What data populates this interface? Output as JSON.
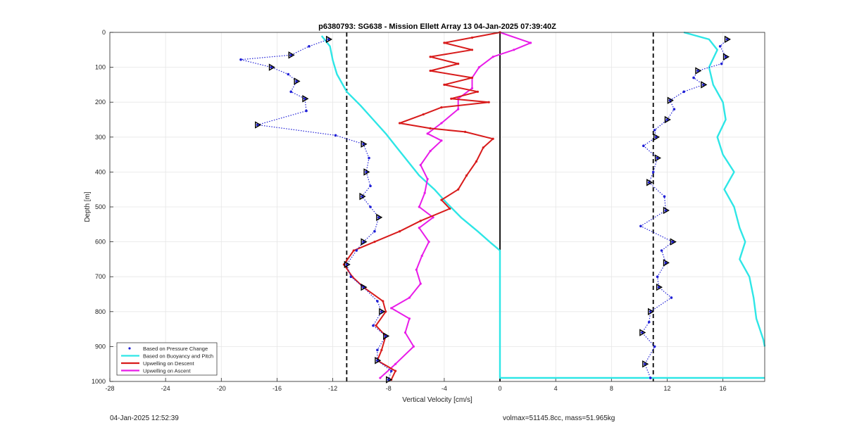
{
  "chart_data": {
    "type": "line",
    "title": "p6380793: SG638 - Mission Ellett Array 13 04-Jan-2025 07:39:40Z",
    "xlabel": "Vertical Velocity [cm/s]",
    "ylabel": "Depth [m]",
    "xlim": [
      -28,
      19
    ],
    "ylim": [
      0,
      1000
    ],
    "y_reversed": true,
    "grid": true,
    "xticks": [
      -28,
      -24,
      -20,
      -16,
      -12,
      -8,
      -4,
      0,
      4,
      8,
      12,
      16
    ],
    "yticks": [
      0,
      100,
      200,
      300,
      400,
      500,
      600,
      700,
      800,
      900,
      1000
    ],
    "reference_lines": [
      {
        "x": -11,
        "style": "dashed",
        "color": "#000000"
      },
      {
        "x": 0,
        "style": "solid",
        "color": "#000000"
      },
      {
        "x": 11,
        "style": "dashed",
        "color": "#000000"
      }
    ],
    "legend_position": "bottom-left",
    "series": [
      {
        "name": "Based on Pressure Change",
        "style": "dots",
        "color": "#1f1fd6",
        "descent": [
          [
            -12.3,
            20
          ],
          [
            -13.7,
            40
          ],
          [
            -15,
            65
          ],
          [
            -18.6,
            78
          ],
          [
            -16.4,
            100
          ],
          [
            -15.2,
            120
          ],
          [
            -14.6,
            140
          ],
          [
            -15,
            170
          ],
          [
            -14,
            190
          ],
          [
            -13.9,
            225
          ],
          [
            -17.4,
            265
          ],
          [
            -11.8,
            295
          ],
          [
            -9.8,
            320
          ],
          [
            -9.4,
            360
          ],
          [
            -9.6,
            400
          ],
          [
            -9.3,
            440
          ],
          [
            -9.9,
            470
          ],
          [
            -9.3,
            500
          ],
          [
            -8.7,
            530
          ],
          [
            -9,
            570
          ],
          [
            -9.8,
            600
          ],
          [
            -10.3,
            625
          ],
          [
            -11,
            665
          ],
          [
            -10.7,
            700
          ],
          [
            -9.8,
            730
          ],
          [
            -8.8,
            770
          ],
          [
            -8.5,
            800
          ],
          [
            -9.1,
            840
          ],
          [
            -8.2,
            870
          ],
          [
            -8.8,
            910
          ],
          [
            -8.8,
            940
          ],
          [
            -7.8,
            970
          ],
          [
            -8,
            995
          ]
        ],
        "ascent": [
          [
            16.3,
            20
          ],
          [
            15.8,
            40
          ],
          [
            16.2,
            70
          ],
          [
            15.9,
            90
          ],
          [
            14.2,
            110
          ],
          [
            13.9,
            130
          ],
          [
            14.6,
            150
          ],
          [
            13.2,
            170
          ],
          [
            12.2,
            195
          ],
          [
            12.5,
            220
          ],
          [
            12,
            250
          ],
          [
            11.1,
            280
          ],
          [
            11.2,
            300
          ],
          [
            10.3,
            325
          ],
          [
            11.3,
            360
          ],
          [
            11,
            400
          ],
          [
            10.7,
            430
          ],
          [
            11.8,
            470
          ],
          [
            11.9,
            510
          ],
          [
            10.1,
            555
          ],
          [
            12.4,
            600
          ],
          [
            11.6,
            625
          ],
          [
            11.9,
            660
          ],
          [
            11.3,
            700
          ],
          [
            11.4,
            730
          ],
          [
            12.3,
            760
          ],
          [
            10.8,
            800
          ],
          [
            10.7,
            830
          ],
          [
            10.2,
            860
          ],
          [
            11.1,
            900
          ],
          [
            10.4,
            950
          ],
          [
            10.8,
            990
          ]
        ]
      },
      {
        "name": "Based on Buoyancy and Pitch",
        "style": "line",
        "color": "#2ee6e6",
        "descent": [
          [
            -12.8,
            10
          ],
          [
            -12.2,
            40
          ],
          [
            -12,
            80
          ],
          [
            -11.7,
            120
          ],
          [
            -11,
            170
          ],
          [
            -10,
            210
          ],
          [
            -9.1,
            250
          ],
          [
            -8.2,
            290
          ],
          [
            -7.4,
            330
          ],
          [
            -6.6,
            370
          ],
          [
            -5.8,
            410
          ],
          [
            -4.7,
            450
          ],
          [
            -3.8,
            490
          ],
          [
            -2.8,
            530
          ],
          [
            -1.6,
            570
          ],
          [
            -0.6,
            605
          ],
          [
            0,
            625
          ],
          [
            0,
            990
          ],
          [
            19,
            990
          ]
        ],
        "ascent": [
          [
            13.2,
            0
          ],
          [
            15,
            20
          ],
          [
            15.6,
            50
          ],
          [
            15,
            100
          ],
          [
            15.3,
            150
          ],
          [
            16,
            200
          ],
          [
            16.2,
            250
          ],
          [
            15.6,
            300
          ],
          [
            16,
            350
          ],
          [
            16.8,
            400
          ],
          [
            16.1,
            450
          ],
          [
            16.8,
            500
          ],
          [
            17.2,
            560
          ],
          [
            17.6,
            600
          ],
          [
            17.2,
            650
          ],
          [
            17.9,
            700
          ],
          [
            18.2,
            760
          ],
          [
            18.4,
            820
          ],
          [
            18.9,
            880
          ],
          [
            19,
            900
          ]
        ]
      },
      {
        "name": "Upwelling on Descent",
        "style": "line",
        "color": "#d81b1b",
        "values": [
          [
            0,
            0
          ],
          [
            -2,
            15
          ],
          [
            -4,
            30
          ],
          [
            -2,
            50
          ],
          [
            -5,
            70
          ],
          [
            -3,
            90
          ],
          [
            -5,
            110
          ],
          [
            -2,
            130
          ],
          [
            -4,
            150
          ],
          [
            -1.6,
            170
          ],
          [
            -3.5,
            190
          ],
          [
            -0.8,
            200
          ],
          [
            -4.2,
            215
          ],
          [
            -5.5,
            235
          ],
          [
            -7.2,
            260
          ],
          [
            -5,
            275
          ],
          [
            -2.5,
            285
          ],
          [
            -0.5,
            305
          ],
          [
            -1.2,
            330
          ],
          [
            -1.7,
            370
          ],
          [
            -2.4,
            410
          ],
          [
            -3,
            450
          ],
          [
            -4.2,
            480
          ],
          [
            -3.6,
            505
          ],
          [
            -5.7,
            540
          ],
          [
            -7.2,
            570
          ],
          [
            -9,
            600
          ],
          [
            -10.5,
            625
          ],
          [
            -11.2,
            665
          ],
          [
            -10.6,
            700
          ],
          [
            -9.8,
            730
          ],
          [
            -8.4,
            770
          ],
          [
            -8.2,
            800
          ],
          [
            -8.9,
            840
          ],
          [
            -8.2,
            870
          ],
          [
            -8.5,
            910
          ],
          [
            -8.8,
            940
          ],
          [
            -7.5,
            970
          ],
          [
            -7.8,
            995
          ]
        ]
      },
      {
        "name": "Upwelling on Ascent",
        "style": "line",
        "color": "#e81ce8",
        "values": [
          [
            -8.6,
            990
          ],
          [
            -7.5,
            950
          ],
          [
            -6.2,
            900
          ],
          [
            -6.8,
            860
          ],
          [
            -6.5,
            820
          ],
          [
            -7.8,
            790
          ],
          [
            -6.5,
            760
          ],
          [
            -5.7,
            720
          ],
          [
            -6,
            680
          ],
          [
            -5.6,
            640
          ],
          [
            -5.1,
            600
          ],
          [
            -5.8,
            560
          ],
          [
            -4.8,
            530
          ],
          [
            -5.8,
            500
          ],
          [
            -5.4,
            460
          ],
          [
            -5.2,
            420
          ],
          [
            -5.7,
            380
          ],
          [
            -5,
            340
          ],
          [
            -4.2,
            310
          ],
          [
            -5.2,
            290
          ],
          [
            -4.2,
            260
          ],
          [
            -3,
            220
          ],
          [
            -3,
            190
          ],
          [
            -2,
            160
          ],
          [
            -2,
            130
          ],
          [
            -1.5,
            100
          ],
          [
            -0.5,
            70
          ],
          [
            1,
            50
          ],
          [
            2.2,
            30
          ],
          [
            0,
            0
          ]
        ]
      }
    ]
  },
  "footer": {
    "left": "04-Jan-2025 12:52:39",
    "right": "volmax=51145.8cc, mass=51.965kg"
  }
}
